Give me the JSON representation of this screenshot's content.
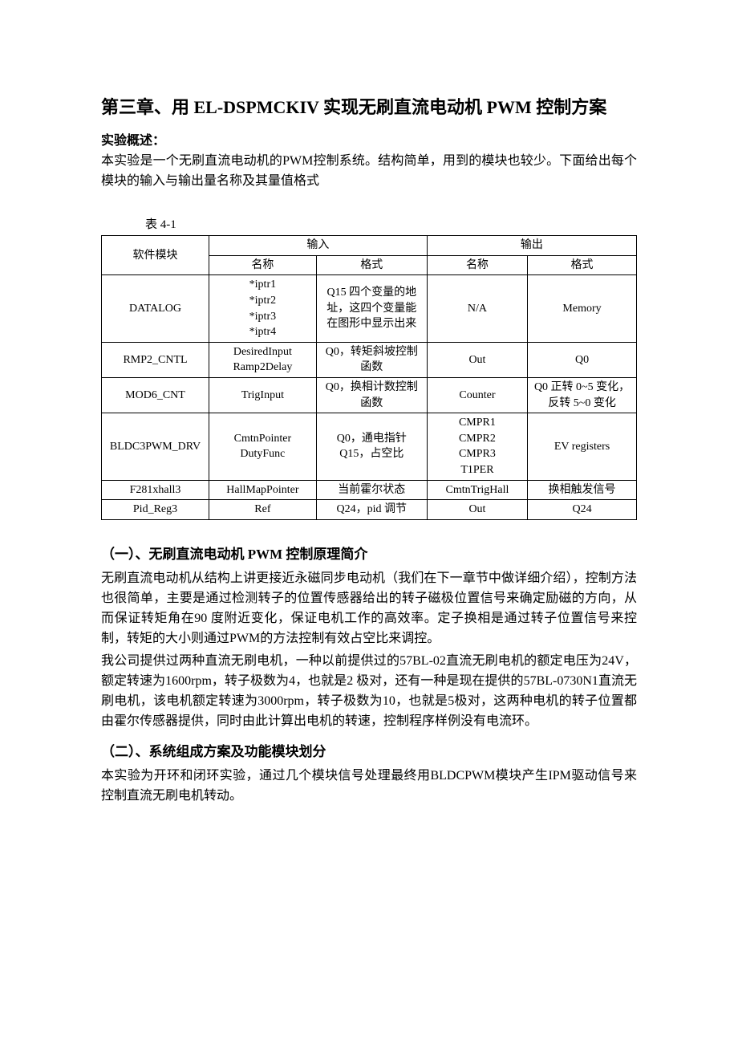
{
  "chapter_title": "第三章、用 EL-DSPMCKIV 实现无刷直流电动机 PWM 控制方案",
  "overview_label": "实验概述：",
  "overview_text": "本实验是一个无刷直流电动机的PWM控制系统。结构简单，用到的模块也较少。下面给出每个模块的输入与输出量名称及其量值格式",
  "table_caption": "表 4-1",
  "table": {
    "header": {
      "module": "软件模块",
      "input": "输入",
      "output": "输出",
      "name": "名称",
      "format": "格式"
    },
    "rows": [
      {
        "module": "DATALOG",
        "in_name": "*iptr1\n*iptr2\n*iptr3\n*iptr4",
        "in_fmt": "Q15 四个变量的地址，这四个变量能在图形中显示出来",
        "out_name": "N/A",
        "out_fmt": "Memory"
      },
      {
        "module": "RMP2_CNTL",
        "in_name": "DesiredInput\nRamp2Delay",
        "in_fmt": "Q0，转矩斜坡控制函数",
        "out_name": "Out",
        "out_fmt": "Q0"
      },
      {
        "module": "MOD6_CNT",
        "in_name": "TrigInput",
        "in_fmt": "Q0，换相计数控制函数",
        "out_name": "Counter",
        "out_fmt": "Q0 正转 0~5 变化，反转 5~0 变化"
      },
      {
        "module": "BLDC3PWM_DRV",
        "in_name": "CmtnPointer\nDutyFunc",
        "in_fmt": "Q0，通电指针\nQ15，占空比",
        "out_name": "CMPR1\nCMPR2\nCMPR3\nT1PER",
        "out_fmt": "EV registers"
      },
      {
        "module": "F281xhall3",
        "in_name": "HallMapPointer",
        "in_fmt": "当前霍尔状态",
        "out_name": "CmtnTrigHall",
        "out_fmt": "换相触发信号"
      },
      {
        "module": "Pid_Reg3",
        "in_name": "Ref",
        "in_fmt": "Q24，pid 调节",
        "out_name": "Out",
        "out_fmt": "Q24"
      }
    ]
  },
  "section1_title": "（一）、无刷直流电动机 PWM 控制原理简介",
  "section1_p1": "无刷直流电动机从结构上讲更接近永磁同步电动机（我们在下一章节中做详细介绍），控制方法也很简单，主要是通过检测转子的位置传感器给出的转子磁极位置信号来确定励磁的方向，从而保证转矩角在90 度附近变化，保证电机工作的高效率。定子换相是通过转子位置信号来控制，转矩的大小则通过PWM的方法控制有效占空比来调控。",
  "section1_p2": "我公司提供过两种直流无刷电机，一种以前提供过的57BL-02直流无刷电机的额定电压为24V，额定转速为1600rpm，转子极数为4，也就是2 极对，还有一种是现在提供的57BL-0730N1直流无刷电机，该电机额定转速为3000rpm，转子极数为10，也就是5极对，这两种电机的转子位置都由霍尔传感器提供，同时由此计算出电机的转速，控制程序样例没有电流环。",
  "section2_title": "（二）、系统组成方案及功能模块划分",
  "section2_p1": "本实验为开环和闭环实验，通过几个模块信号处理最终用BLDCPWM模块产生IPM驱动信号来控制直流无刷电机转动。"
}
